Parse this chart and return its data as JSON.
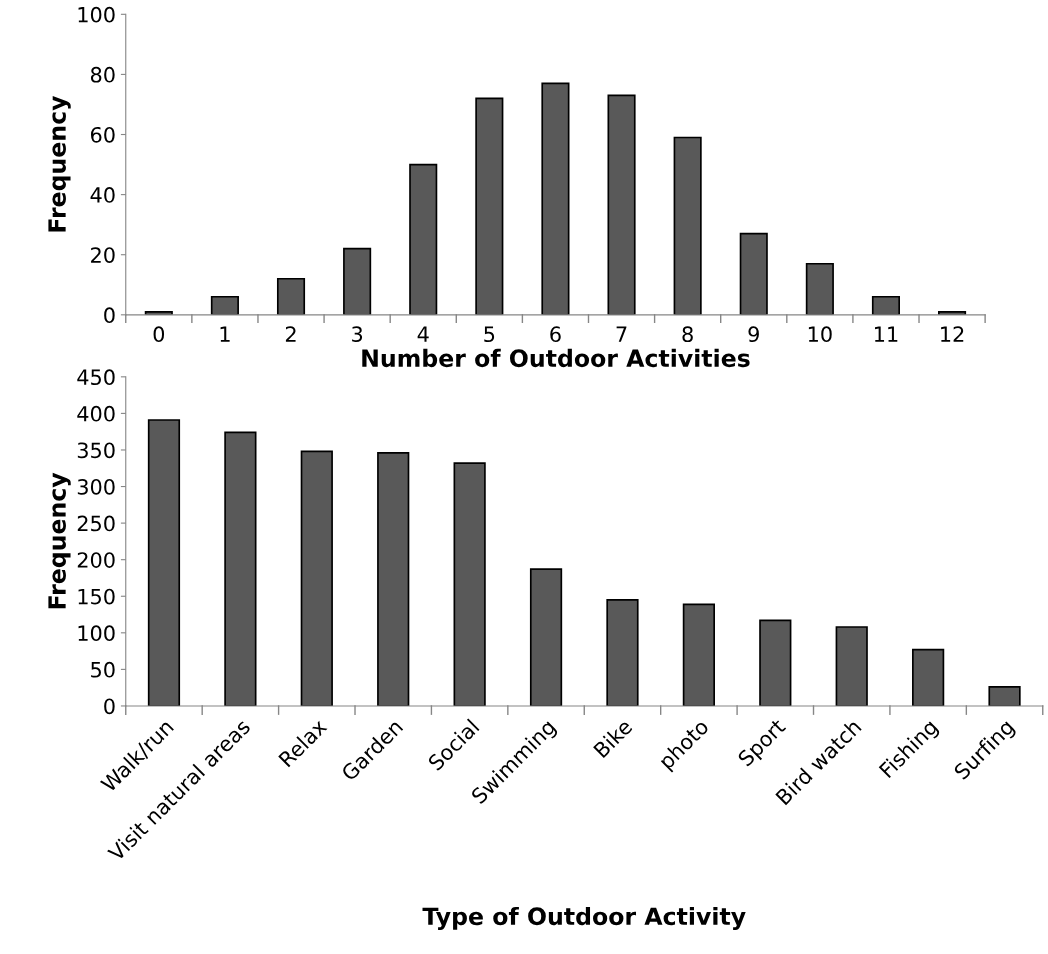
{
  "chart_data": [
    {
      "type": "bar",
      "xlabel": "Number of Outdoor Activities",
      "ylabel": "Frequency",
      "categories": [
        "0",
        "1",
        "2",
        "3",
        "4",
        "5",
        "6",
        "7",
        "8",
        "9",
        "10",
        "11",
        "12"
      ],
      "series": [
        {
          "color": "#595959",
          "values": [
            1,
            6,
            12,
            22,
            50,
            72,
            77,
            73,
            59,
            27,
            17,
            6,
            1
          ]
        }
      ],
      "ylim": [
        0,
        100
      ],
      "yticks": [
        0,
        20,
        40,
        60,
        80,
        100
      ],
      "grid": false,
      "legend": false
    },
    {
      "type": "bar",
      "xlabel": "Type of Outdoor Activity",
      "ylabel": "Frequency",
      "categories": [
        "Walk/run",
        "Visit natural areas",
        "Relax",
        "Garden",
        "Social",
        "Swimming",
        "Bike",
        "photo",
        "Sport",
        "Bird watch",
        "Fishing",
        "Surfing"
      ],
      "series": [
        {
          "color": "#595959",
          "values": [
            391,
            374,
            348,
            346,
            332,
            187,
            145,
            139,
            117,
            108,
            77,
            26
          ]
        }
      ],
      "ylim": [
        0,
        450
      ],
      "yticks": [
        0,
        50,
        100,
        150,
        200,
        250,
        300,
        350,
        400,
        450
      ],
      "grid": false,
      "legend": false
    }
  ]
}
